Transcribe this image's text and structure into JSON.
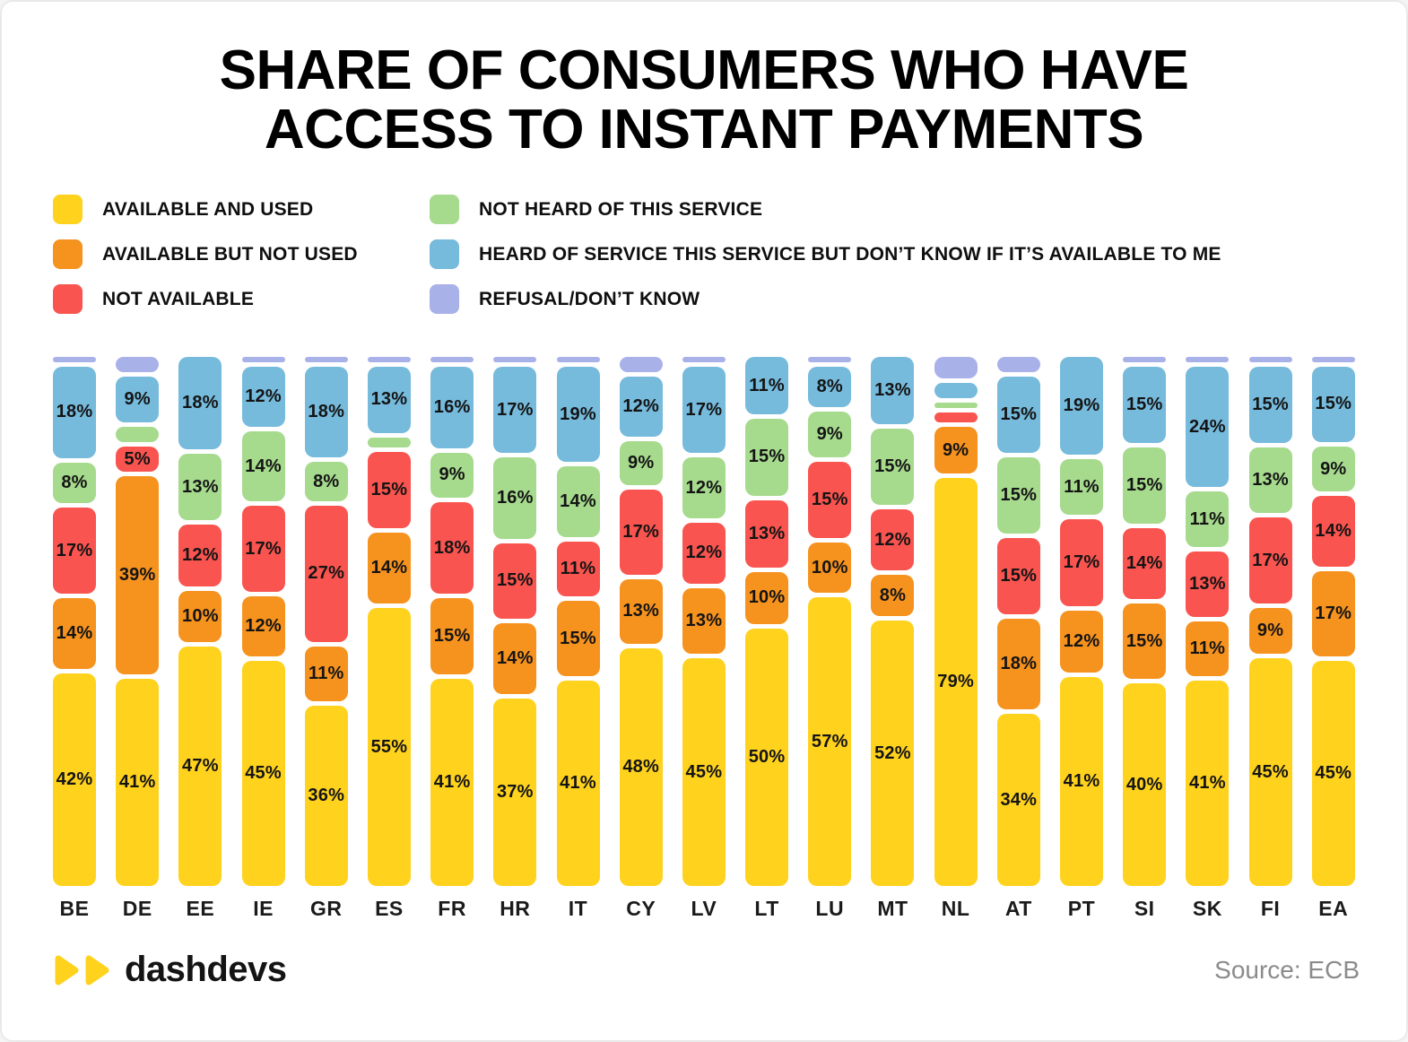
{
  "title": {
    "line1": "SHARE OF CONSUMERS WHO HAVE",
    "line2": "ACCESS TO INSTANT PAYMENTS"
  },
  "footer": {
    "logo_text": "dashdevs",
    "source": "Source: ECB"
  },
  "chart_data": {
    "type": "bar",
    "subtype": "stacked-percentage",
    "title": "SHARE OF CONSUMERS WHO HAVE ACCESS TO INSTANT PAYMENTS",
    "xlabel": "",
    "ylabel": "",
    "ylim": [
      0,
      100
    ],
    "grid": false,
    "legend_position": "top",
    "label_threshold": 5,
    "categories": [
      "BE",
      "DE",
      "EE",
      "IE",
      "GR",
      "ES",
      "FR",
      "HR",
      "IT",
      "CY",
      "LV",
      "LT",
      "LU",
      "MT",
      "NL",
      "AT",
      "PT",
      "SI",
      "SK",
      "FI",
      "EA"
    ],
    "series": [
      {
        "name": "AVAILABLE AND USED",
        "color": "#FFD21E",
        "values": [
          42,
          41,
          47,
          45,
          36,
          55,
          41,
          37,
          41,
          48,
          45,
          50,
          57,
          52,
          79,
          34,
          41,
          40,
          41,
          45,
          45
        ]
      },
      {
        "name": "AVAILABLE BUT NOT USED",
        "color": "#F6921E",
        "values": [
          14,
          39,
          10,
          12,
          11,
          14,
          15,
          14,
          15,
          13,
          13,
          10,
          10,
          8,
          9,
          18,
          12,
          15,
          11,
          9,
          17
        ]
      },
      {
        "name": "NOT AVAILABLE",
        "color": "#F9544F",
        "values": [
          17,
          5,
          12,
          17,
          27,
          15,
          18,
          15,
          11,
          17,
          12,
          13,
          15,
          12,
          2,
          15,
          17,
          14,
          13,
          17,
          14
        ]
      },
      {
        "name": "NOT HEARD OF THIS SERVICE",
        "color": "#A6DA8D",
        "values": [
          8,
          3,
          13,
          14,
          8,
          2,
          9,
          16,
          14,
          9,
          12,
          15,
          9,
          15,
          1,
          15,
          11,
          15,
          11,
          13,
          9
        ]
      },
      {
        "name": "HEARD OF SERVICE THIS SERVICE BUT DON’T KNOW IF IT’S AVAILABLE TO ME",
        "color": "#76BADC",
        "values": [
          18,
          9,
          18,
          12,
          18,
          13,
          16,
          17,
          19,
          12,
          17,
          11,
          8,
          13,
          3,
          15,
          19,
          15,
          24,
          15,
          15
        ]
      },
      {
        "name": "REFUSAL/DON’T KNOW",
        "color": "#A9B1E9",
        "values": [
          1,
          3,
          0,
          1,
          1,
          1,
          1,
          1,
          1,
          3,
          1,
          0,
          1,
          0,
          4,
          3,
          0,
          1,
          1,
          1,
          1
        ]
      }
    ]
  }
}
